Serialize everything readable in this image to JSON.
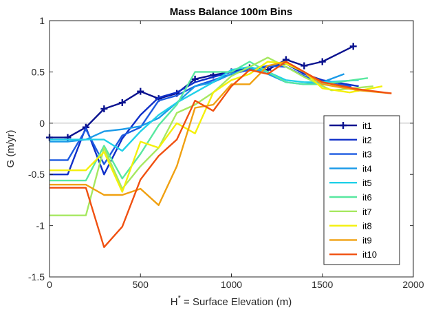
{
  "chart_data": {
    "type": "line",
    "title": "Mass Balance 100m Bins",
    "xlabel_main": "H",
    "xlabel_sup": "*",
    "xlabel_rest": " = Surface Elevation (m)",
    "ylabel": "G (m/yr)",
    "xlim": [
      0,
      2000
    ],
    "ylim": [
      -1.5,
      1
    ],
    "xticks": [
      0,
      500,
      1000,
      1500,
      2000
    ],
    "yticks": [
      -1.5,
      -1,
      -0.5,
      0,
      0.5,
      1
    ],
    "zero_line": true,
    "legend_position": "lower-right",
    "series": [
      {
        "name": "it1",
        "color": "#0a128f",
        "marker": "plus",
        "x": [
          0,
          100,
          200,
          300,
          400,
          500,
          600,
          700,
          800,
          900,
          1000,
          1100,
          1200,
          1300,
          1400,
          1500,
          1670
        ],
        "y": [
          -0.14,
          -0.14,
          -0.04,
          0.14,
          0.2,
          0.31,
          0.24,
          0.29,
          0.43,
          0.47,
          0.5,
          0.54,
          0.52,
          0.62,
          0.56,
          0.6,
          0.75
        ]
      },
      {
        "name": "it2",
        "color": "#0f2fc8",
        "x": [
          0,
          100,
          200,
          300,
          400,
          500,
          600,
          700,
          800,
          900,
          1000,
          1100,
          1200,
          1300,
          1400,
          1500,
          1700
        ],
        "y": [
          -0.5,
          -0.5,
          -0.04,
          -0.5,
          -0.15,
          0.08,
          0.25,
          0.3,
          0.4,
          0.45,
          0.5,
          0.52,
          0.55,
          0.58,
          0.48,
          0.42,
          0.36
        ]
      },
      {
        "name": "it3",
        "color": "#1c5ae0",
        "x": [
          0,
          100,
          200,
          300,
          400,
          500,
          600,
          700,
          800,
          900,
          1000,
          1100,
          1200,
          1300,
          1400,
          1500,
          1660
        ],
        "y": [
          -0.36,
          -0.36,
          -0.06,
          -0.4,
          -0.12,
          -0.04,
          0.22,
          0.27,
          0.36,
          0.42,
          0.48,
          0.52,
          0.56,
          0.55,
          0.46,
          0.4,
          0.36
        ]
      },
      {
        "name": "it4",
        "color": "#1a9ae8",
        "x": [
          0,
          100,
          200,
          300,
          400,
          500,
          600,
          700,
          800,
          900,
          1000,
          1100,
          1200,
          1300,
          1400,
          1500,
          1620
        ],
        "y": [
          -0.18,
          -0.18,
          -0.16,
          -0.08,
          -0.06,
          -0.03,
          0.05,
          0.2,
          0.36,
          0.4,
          0.48,
          0.54,
          0.48,
          0.4,
          0.38,
          0.4,
          0.48
        ]
      },
      {
        "name": "it5",
        "color": "#20d0e8",
        "x": [
          0,
          100,
          200,
          300,
          400,
          500,
          600,
          700,
          800,
          900,
          1000,
          1100,
          1200,
          1300,
          1400,
          1500,
          1700
        ],
        "y": [
          -0.16,
          -0.16,
          -0.16,
          -0.16,
          -0.27,
          -0.08,
          0.08,
          0.2,
          0.3,
          0.4,
          0.52,
          0.55,
          0.5,
          0.42,
          0.4,
          0.4,
          0.42
        ]
      },
      {
        "name": "it6",
        "color": "#58e8a0",
        "x": [
          0,
          100,
          200,
          300,
          400,
          500,
          600,
          700,
          800,
          900,
          1000,
          1100,
          1200,
          1300,
          1400,
          1500,
          1750
        ],
        "y": [
          -0.56,
          -0.56,
          -0.56,
          -0.22,
          -0.54,
          -0.3,
          -0.02,
          0.18,
          0.5,
          0.5,
          0.5,
          0.6,
          0.5,
          0.4,
          0.38,
          0.38,
          0.44
        ]
      },
      {
        "name": "it7",
        "color": "#a6e860",
        "x": [
          0,
          100,
          200,
          300,
          400,
          500,
          600,
          700,
          800,
          900,
          1000,
          1100,
          1200,
          1300,
          1400,
          1550,
          1780
        ],
        "y": [
          -0.9,
          -0.9,
          -0.9,
          -0.24,
          -0.64,
          -0.42,
          -0.24,
          0.1,
          0.18,
          0.3,
          0.46,
          0.55,
          0.64,
          0.55,
          0.45,
          0.32,
          0.36
        ]
      },
      {
        "name": "it8",
        "color": "#f4f00a",
        "x": [
          0,
          100,
          200,
          300,
          400,
          500,
          600,
          700,
          800,
          900,
          1000,
          1100,
          1200,
          1300,
          1400,
          1500,
          1650,
          1830
        ],
        "y": [
          -0.46,
          -0.46,
          -0.46,
          -0.28,
          -0.67,
          -0.18,
          -0.24,
          0.0,
          -0.1,
          0.3,
          0.42,
          0.48,
          0.6,
          0.58,
          0.5,
          0.34,
          0.3,
          0.36
        ]
      },
      {
        "name": "it9",
        "color": "#f0a010",
        "x": [
          0,
          100,
          200,
          300,
          400,
          500,
          600,
          700,
          800,
          900,
          1000,
          1100,
          1200,
          1300,
          1400,
          1500,
          1700,
          1880
        ],
        "y": [
          -0.6,
          -0.6,
          -0.6,
          -0.7,
          -0.7,
          -0.64,
          -0.8,
          -0.42,
          0.15,
          0.18,
          0.38,
          0.38,
          0.56,
          0.6,
          0.5,
          0.38,
          0.32,
          0.29
        ]
      },
      {
        "name": "it10",
        "color": "#f05010",
        "x": [
          0,
          100,
          200,
          300,
          400,
          500,
          600,
          700,
          800,
          900,
          1000,
          1100,
          1200,
          1300,
          1400,
          1500,
          1700,
          1880
        ],
        "y": [
          -0.63,
          -0.63,
          -0.63,
          -1.21,
          -1.01,
          -0.55,
          -0.32,
          -0.16,
          0.22,
          0.12,
          0.36,
          0.52,
          0.48,
          0.6,
          0.5,
          0.4,
          0.33,
          0.29
        ]
      }
    ]
  }
}
